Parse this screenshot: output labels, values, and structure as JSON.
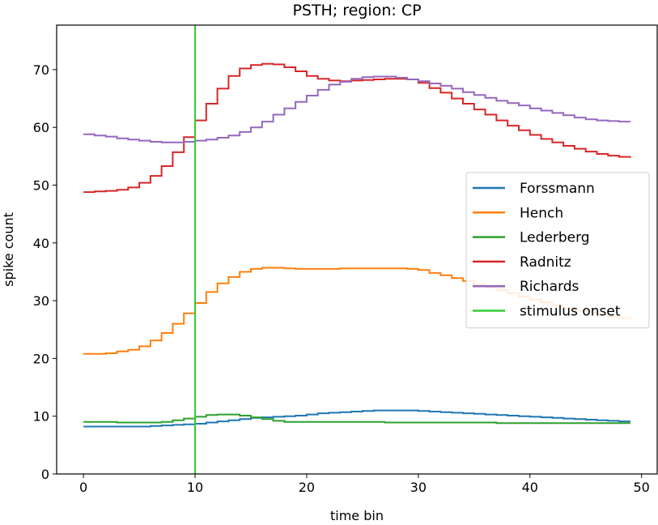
{
  "chart_data": {
    "type": "line",
    "step": true,
    "title": "PSTH; region: CP",
    "xlabel": "time bin",
    "ylabel": "spike count",
    "xlim": [
      -2.4,
      51.4
    ],
    "ylim": [
      0,
      77.7
    ],
    "xticks": [
      0,
      10,
      20,
      30,
      40,
      50
    ],
    "yticks": [
      0,
      10,
      20,
      30,
      40,
      50,
      60,
      70
    ],
    "grid": false,
    "legend_position": "center-right",
    "x": [
      0,
      1,
      2,
      3,
      4,
      5,
      6,
      7,
      8,
      9,
      10,
      11,
      12,
      13,
      14,
      15,
      16,
      17,
      18,
      19,
      20,
      21,
      22,
      23,
      24,
      25,
      26,
      27,
      28,
      29,
      30,
      31,
      32,
      33,
      34,
      35,
      36,
      37,
      38,
      39,
      40,
      41,
      42,
      43,
      44,
      45,
      46,
      47,
      48,
      49
    ],
    "series": [
      {
        "name": "Forssmann",
        "color": "#1f77b4",
        "values": [
          8.2,
          8.2,
          8.2,
          8.2,
          8.2,
          8.2,
          8.3,
          8.4,
          8.5,
          8.6,
          8.7,
          8.9,
          9.1,
          9.3,
          9.5,
          9.7,
          9.8,
          9.9,
          10.0,
          10.1,
          10.3,
          10.5,
          10.6,
          10.7,
          10.8,
          10.9,
          11.0,
          11.0,
          11.0,
          11.0,
          10.9,
          10.8,
          10.7,
          10.6,
          10.5,
          10.4,
          10.3,
          10.2,
          10.1,
          10.0,
          9.9,
          9.8,
          9.7,
          9.6,
          9.5,
          9.4,
          9.3,
          9.2,
          9.1,
          9.1
        ]
      },
      {
        "name": "Hench",
        "color": "#ff7f0e",
        "values": [
          20.8,
          20.8,
          20.9,
          21.2,
          21.5,
          22.1,
          23.1,
          24.4,
          26.0,
          27.8,
          29.6,
          31.5,
          33.0,
          34.1,
          35.0,
          35.5,
          35.7,
          35.7,
          35.6,
          35.5,
          35.5,
          35.5,
          35.5,
          35.6,
          35.6,
          35.6,
          35.6,
          35.6,
          35.6,
          35.5,
          35.3,
          34.8,
          34.4,
          33.9,
          33.4,
          32.8,
          32.3,
          31.8,
          31.3,
          30.7,
          30.2,
          29.7,
          29.2,
          28.7,
          28.3,
          28.0,
          27.6,
          27.3,
          27.0,
          26.9
        ]
      },
      {
        "name": "Lederberg",
        "color": "#2ca02c",
        "values": [
          9.0,
          9.0,
          9.0,
          8.9,
          8.9,
          8.9,
          8.9,
          9.0,
          9.3,
          9.6,
          9.9,
          10.2,
          10.3,
          10.3,
          10.1,
          9.8,
          9.5,
          9.2,
          9.0,
          9.0,
          9.0,
          9.0,
          9.0,
          9.0,
          9.0,
          9.0,
          9.0,
          8.9,
          8.9,
          8.9,
          8.9,
          8.9,
          8.9,
          8.9,
          8.9,
          8.9,
          8.9,
          8.8,
          8.8,
          8.8,
          8.8,
          8.8,
          8.8,
          8.8,
          8.8,
          8.8,
          8.8,
          8.8,
          8.8,
          8.8
        ]
      },
      {
        "name": "Radnitz",
        "color": "#d62728",
        "values": [
          48.8,
          48.9,
          49.0,
          49.2,
          49.6,
          50.4,
          51.6,
          53.3,
          55.7,
          58.3,
          61.2,
          64.1,
          66.7,
          68.9,
          70.2,
          70.8,
          71.0,
          70.9,
          70.4,
          69.7,
          68.9,
          68.4,
          68.1,
          68.0,
          68.1,
          68.2,
          68.3,
          68.4,
          68.4,
          68.3,
          67.7,
          66.8,
          66.0,
          65.0,
          64.1,
          63.1,
          62.2,
          61.2,
          60.3,
          59.5,
          58.7,
          58.0,
          57.4,
          56.8,
          56.3,
          55.8,
          55.4,
          55.1,
          54.9,
          55.0
        ]
      },
      {
        "name": "Richards",
        "color": "#9467bd",
        "values": [
          58.8,
          58.6,
          58.4,
          58.1,
          57.9,
          57.7,
          57.5,
          57.4,
          57.4,
          57.5,
          57.7,
          57.9,
          58.2,
          58.6,
          59.2,
          60.0,
          61.0,
          62.2,
          63.3,
          64.4,
          65.5,
          66.5,
          67.4,
          67.9,
          68.4,
          68.7,
          68.8,
          68.8,
          68.6,
          68.3,
          68.0,
          67.6,
          67.2,
          66.7,
          66.1,
          65.6,
          65.1,
          64.6,
          64.2,
          63.8,
          63.3,
          62.9,
          62.5,
          62.1,
          61.7,
          61.4,
          61.2,
          61.1,
          61.0,
          61.0
        ]
      }
    ],
    "vlines": [
      {
        "name": "stimulus onset",
        "x": 10,
        "color": "#32cd32"
      }
    ]
  }
}
